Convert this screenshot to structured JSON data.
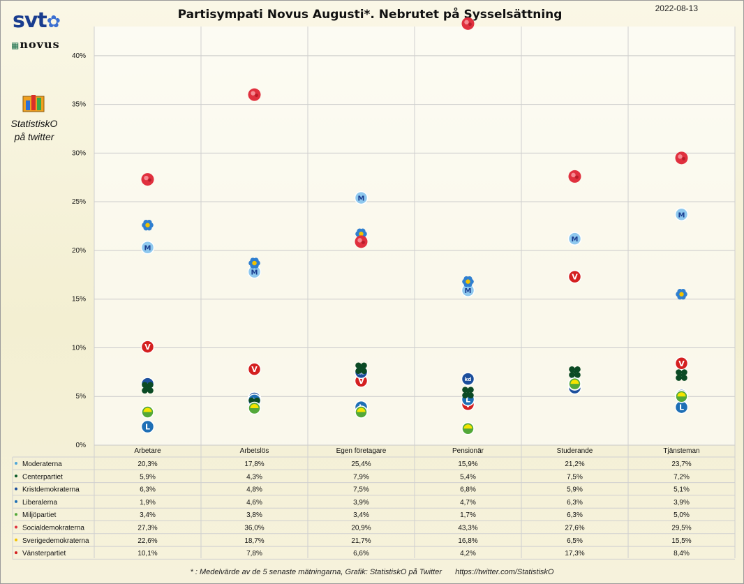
{
  "header": {
    "title": "Partisympati  Novus Augusti*. Nebrutet på Sysselsättning",
    "date": "2022-08-13"
  },
  "logos": {
    "svt": "svt",
    "novus": "novus",
    "statistisk_line1": "StatistiskO",
    "statistisk_line2": "på twitter"
  },
  "footnote": {
    "text": "* : Medelvärde av de 5 senaste mätningarna, Grafik: StatistiskO på Twitter",
    "url": "https://twitter.com/StatistiskO"
  },
  "chart_data": {
    "type": "scatter",
    "categories": [
      "Arbetare",
      "Arbetslös",
      "Egen företagare",
      "Pensionär",
      "Studerande",
      "Tjänsteman"
    ],
    "ylim": [
      0,
      43
    ],
    "yticks": [
      "0%",
      "5%",
      "10%",
      "15%",
      "20%",
      "25%",
      "30%",
      "35%",
      "40%"
    ],
    "grid": true,
    "series": [
      {
        "name": "Moderaterna",
        "color": "#4fa6d8",
        "icon": "moderaterna-logo-icon",
        "values": [
          20.3,
          17.8,
          25.4,
          15.9,
          21.2,
          23.7
        ],
        "labels": [
          "20,3%",
          "17,8%",
          "25,4%",
          "15,9%",
          "21,2%",
          "23,7%"
        ]
      },
      {
        "name": "Centerpartiet",
        "color": "#0b5a2a",
        "icon": "centerpartiet-logo-icon",
        "values": [
          5.9,
          4.3,
          7.9,
          5.4,
          7.5,
          7.2
        ],
        "labels": [
          "5,9%",
          "4,3%",
          "7,9%",
          "5,4%",
          "7,5%",
          "7,2%"
        ]
      },
      {
        "name": "Kristdemokraterna",
        "color": "#1c4f9c",
        "icon": "kristdemokraterna-logo-icon",
        "values": [
          6.3,
          4.8,
          7.5,
          6.8,
          5.9,
          5.1
        ],
        "labels": [
          "6,3%",
          "4,8%",
          "7,5%",
          "6,8%",
          "5,9%",
          "5,1%"
        ]
      },
      {
        "name": "Liberalerna",
        "color": "#1e6fb5",
        "icon": "liberalerna-logo-icon",
        "values": [
          1.9,
          4.6,
          3.9,
          4.7,
          6.3,
          3.9
        ],
        "labels": [
          "1,9%",
          "4,6%",
          "3,9%",
          "4,7%",
          "6,3%",
          "3,9%"
        ]
      },
      {
        "name": "Miljöpartiet",
        "color": "#53a839",
        "icon": "miljopartiet-logo-icon",
        "values": [
          3.4,
          3.8,
          3.4,
          1.7,
          6.3,
          5.0
        ],
        "labels": [
          "3,4%",
          "3,8%",
          "3,4%",
          "1,7%",
          "6,3%",
          "5,0%"
        ]
      },
      {
        "name": "Socialdemokraterna",
        "color": "#e0303e",
        "icon": "socialdemokraterna-logo-icon",
        "values": [
          27.3,
          36.0,
          20.9,
          43.3,
          27.6,
          29.5
        ],
        "labels": [
          "27,3%",
          "36,0%",
          "20,9%",
          "43,3%",
          "27,6%",
          "29,5%"
        ]
      },
      {
        "name": "Sverigedemokraterna",
        "color": "#f2c200",
        "icon": "sverigedemokraterna-logo-icon",
        "values": [
          22.6,
          18.7,
          21.7,
          16.8,
          6.5,
          15.5
        ],
        "labels": [
          "22,6%",
          "18,7%",
          "21,7%",
          "16,8%",
          "6,5%",
          "15,5%"
        ]
      },
      {
        "name": "Vänsterpartiet",
        "color": "#d42020",
        "icon": "vansterpartiet-logo-icon",
        "values": [
          10.1,
          7.8,
          6.6,
          4.2,
          17.3,
          8.4
        ],
        "labels": [
          "10,1%",
          "7,8%",
          "6,6%",
          "4,2%",
          "17,3%",
          "8,4%"
        ]
      }
    ]
  }
}
